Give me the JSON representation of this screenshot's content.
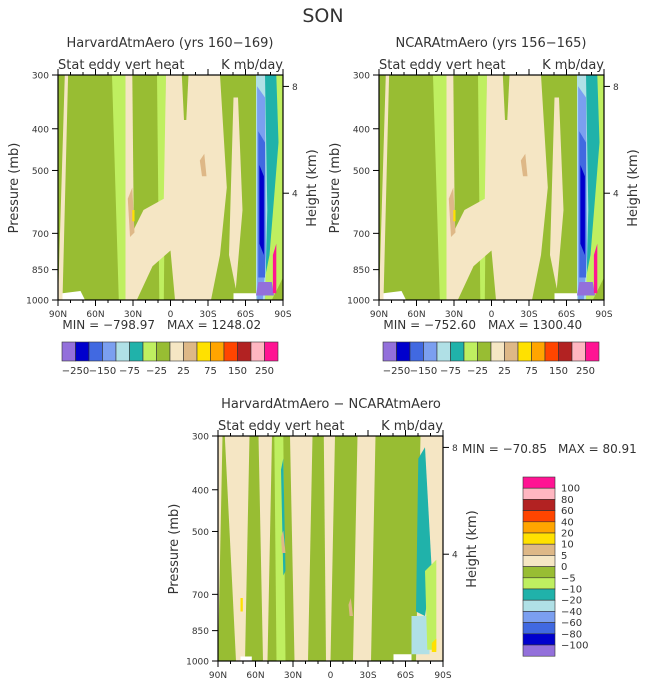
{
  "chart_data": {
    "title": "SON",
    "type": "heatmap",
    "panels": [
      {
        "id": "harvard",
        "title": "HarvardAtmAero (yrs 160−169)",
        "left_subtitle": "Stat eddy vert heat",
        "right_subtitle": "K mb/day",
        "ylabel": "Pressure (mb)",
        "ylabel_right": "Height (km)",
        "min_label": "MIN = −798.97",
        "max_label": "MAX = 1248.02",
        "min": -798.97,
        "max": 1248.02
      },
      {
        "id": "ncar",
        "title": "NCARAtmAero (yrs 156−165)",
        "left_subtitle": "Stat eddy vert heat",
        "right_subtitle": "K mb/day",
        "ylabel": "Pressure (mb)",
        "ylabel_right": "Height (km)",
        "min_label": "MIN = −752.60",
        "max_label": "MAX = 1300.40",
        "min": -752.6,
        "max": 1300.4
      },
      {
        "id": "diff",
        "title": "HarvardAtmAero − NCARAtmAero",
        "left_subtitle": "Stat eddy vert heat",
        "right_subtitle": "K mb/day",
        "ylabel": "Pressure (mb)",
        "ylabel_right": "Height (km)",
        "min_label": "MIN = −70.85",
        "max_label": "MAX =  80.91",
        "min": -70.85,
        "max": 80.91
      }
    ],
    "x_ticks": [
      "90N",
      "60N",
      "30N",
      "0",
      "30S",
      "60S",
      "90S"
    ],
    "y_ticks": [
      "300",
      "400",
      "500",
      "700",
      "850",
      "1000"
    ],
    "y_tick_values": [
      300,
      400,
      500,
      700,
      850,
      1000
    ],
    "height_ticks": [
      "8",
      "4"
    ],
    "height_tick_values": [
      8,
      4
    ],
    "ylim": [
      1000,
      300
    ],
    "xlim": [
      90,
      -90
    ],
    "levels_top": {
      "colors": [
        "#9370DB",
        "#0000CD",
        "#4169E1",
        "#7B9FF0",
        "#B0E0E6",
        "#20B2AA",
        "#BFEF60",
        "#98BD33",
        "#F5E6C4",
        "#DEB887",
        "#FFE100",
        "#FFA500",
        "#FF4500",
        "#B22222",
        "#FFB6C1",
        "#FF1493"
      ],
      "labels": [
        "−250",
        "−150",
        "−75",
        "−25",
        "25",
        "75",
        "150",
        "250"
      ]
    },
    "levels_diff": {
      "colors": [
        "#FF1493",
        "#FFB6C1",
        "#B22222",
        "#FF4500",
        "#FFA500",
        "#FFE100",
        "#DEB887",
        "#F5E6C4",
        "#98BD33",
        "#BFEF60",
        "#20B2AA",
        "#B0E0E6",
        "#7B9FF0",
        "#4169E1",
        "#0000CD",
        "#9370DB"
      ],
      "labels": [
        "100",
        "80",
        "60",
        "40",
        "20",
        "10",
        "5",
        "0",
        "−5",
        "−10",
        "−20",
        "−40",
        "−60",
        "−80",
        "−100"
      ]
    }
  }
}
